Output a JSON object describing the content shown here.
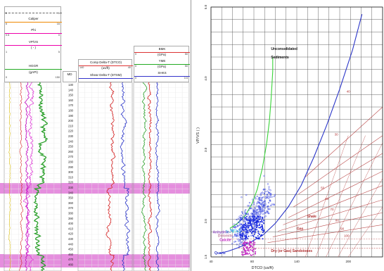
{
  "colors": {
    "gr": "#2ba02b",
    "rho": "#d6b800",
    "phi": "#e03fd8",
    "vpvs": "#c000c0",
    "dtco": "#d42020",
    "dtsm": "#2a35c8",
    "ym": "#2ba02b",
    "pr": "#1e1e9a",
    "band": "#e07ad8",
    "green_curve": "#39d439",
    "blue_curve": "#2a35c8",
    "contour": "#b03030",
    "cloud_blue": "#3040e0",
    "cloud_magenta": "#c020c0"
  },
  "headers": {
    "gr_range_left": "0",
    "gr_range_right": "1",
    "cal_label": "Caliper",
    "cal_range_left": "6",
    "cal_range_right": "16",
    "phi_label": "Phi",
    "phi_range_left": "0.5",
    "phi_range_right": "0",
    "vpvs_label": "VP/VS",
    "vpvs_unit": "( - )",
    "vpvs_range_left": "1",
    "vpvs_range_right": "5",
    "hgr_label": "HGGR",
    "hgr_unit": "(gAPI)",
    "hgr_range_left": "0",
    "hgr_range_right": "150",
    "md_label": "MD",
    "dtco_label": "Comp Delta-T (DTCO)",
    "dtco_unit": "(us/ft)",
    "dtco_range_left": "140",
    "dtco_range_right": "40",
    "dtsm_label": "Shear Delta-T (DTSM)",
    "bmk_label": "BMK",
    "bmk_unit": "(GPa)",
    "bmk_range_left": "0",
    "bmk_range_right": "50",
    "ym_label": "YME",
    "ym_unit": "(GPa)",
    "ym_range_left": "0",
    "ym_range_right": "50",
    "pr_label": "SHKS",
    "pr_range_left": "0",
    "pr_range_right": "0.5"
  },
  "depth_ticks": [
    "130",
    "140",
    "150",
    "160",
    "170",
    "180",
    "190",
    "200",
    "210",
    "220",
    "230",
    "240",
    "250",
    "260",
    "270",
    "280",
    "290",
    "300",
    "310",
    "320",
    "330",
    "340",
    "350",
    "360",
    "370",
    "380",
    "390",
    "400",
    "410",
    "420",
    "430",
    "440",
    "450",
    "460",
    "470",
    "480"
  ],
  "chart_data": {
    "type": "scatter",
    "xlabel": "DTCO (us/ft)",
    "ylabel": "VP/VS ( )",
    "xlim": [
      40,
      240
    ],
    "ylim": [
      1.5,
      5
    ],
    "x_ticks": [
      "40",
      "80",
      "140",
      "200"
    ],
    "y_ticks": [
      "1.5",
      "2.0",
      "3.0",
      "4.0",
      "5.0"
    ],
    "grid": true,
    "annotations": [
      "Unconsolidated",
      "Sediments",
      "Quartz",
      "Anhydrite",
      "Dolomite",
      "Calcite",
      "Shale",
      "Gas",
      "Dry (or Gas) Sandstones",
      "30",
      "40",
      "50",
      "60",
      "70",
      "80",
      "90",
      "100"
    ],
    "series": [
      {
        "name": "",
        "values": [
          [
            112,
            4.3
          ],
          [
            112,
            4.1
          ],
          [
            111,
            3.9
          ],
          [
            110,
            3.7
          ],
          [
            108,
            3.4
          ],
          [
            105,
            3.1
          ],
          [
            100,
            2.75
          ],
          [
            94,
            2.45
          ],
          [
            88,
            2.25
          ],
          [
            80,
            2.08
          ],
          [
            70,
            1.96
          ],
          [
            62,
            1.9
          ]
        ]
      },
      {
        "name": "",
        "values": [
          [
            216,
            4.9
          ],
          [
            205,
            4.4
          ],
          [
            190,
            3.85
          ],
          [
            175,
            3.35
          ],
          [
            160,
            2.9
          ],
          [
            145,
            2.5
          ],
          [
            130,
            2.2
          ],
          [
            115,
            1.97
          ],
          [
            100,
            1.8
          ],
          [
            85,
            1.7
          ],
          [
            72,
            1.63
          ],
          [
            60,
            1.58
          ],
          [
            50,
            1.55
          ]
        ]
      }
    ]
  }
}
